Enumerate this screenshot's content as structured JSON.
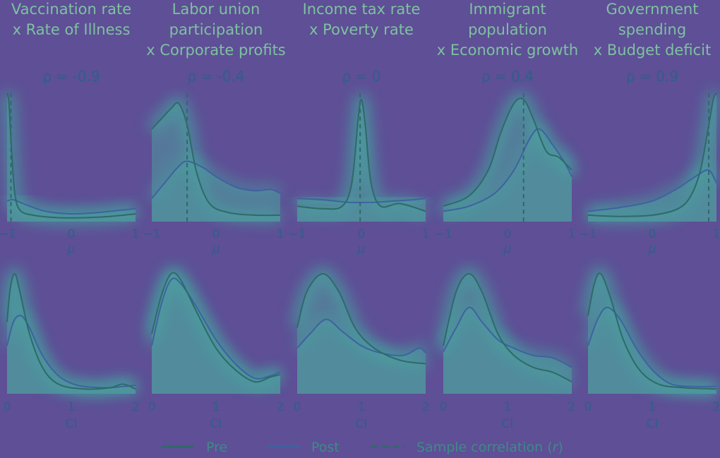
{
  "chart_data": {
    "type": "density",
    "legend": {
      "placement": "bottom",
      "entries": [
        {
          "label": "Pre",
          "style": "solid",
          "color": "#2f5f6e"
        },
        {
          "label": "Post",
          "style": "solid",
          "color": "#4a3f8f"
        },
        {
          "label": "Sample correlation (",
          "label_italic": "r",
          "label_end": ")",
          "style": "dashed",
          "color": "#2f5f6e"
        }
      ]
    },
    "colors": {
      "background": "#5e4f96",
      "fill": "#4f9a9e",
      "pre_line": "#2f6a68",
      "post_line": "#3f62a0",
      "glow": "#39c4a0",
      "text": "#2f5f88",
      "title": "#7ec1a0"
    },
    "mu_axis": {
      "label": "μ",
      "range": [
        -1,
        1
      ],
      "ticks": [
        "−1",
        "0",
        "1"
      ]
    },
    "ci_axis": {
      "label": "CI",
      "range": [
        0,
        2
      ],
      "ticks": [
        "0",
        "1",
        "2"
      ]
    },
    "rho_prefix": "ρ = ",
    "panels": [
      {
        "title": [
          "Vaccination rate",
          "x Rate of Illness"
        ],
        "rho": "-0.9",
        "sample_r": -0.94,
        "mu_pre": [
          [
            -1,
            1.0
          ],
          [
            -0.97,
            0.92
          ],
          [
            -0.93,
            0.55
          ],
          [
            -0.88,
            0.22
          ],
          [
            -0.8,
            0.09
          ],
          [
            -0.6,
            0.05
          ],
          [
            -0.2,
            0.03
          ],
          [
            0.2,
            0.03
          ],
          [
            0.6,
            0.04
          ],
          [
            1,
            0.06
          ]
        ],
        "mu_post": [
          [
            -1,
            0.16
          ],
          [
            -0.9,
            0.17
          ],
          [
            -0.7,
            0.13
          ],
          [
            -0.4,
            0.08
          ],
          [
            0,
            0.06
          ],
          [
            0.4,
            0.07
          ],
          [
            0.8,
            0.09
          ],
          [
            1,
            0.1
          ]
        ],
        "ci_pre": [
          [
            0,
            0.6
          ],
          [
            0.05,
            0.88
          ],
          [
            0.12,
            1.0
          ],
          [
            0.2,
            0.85
          ],
          [
            0.35,
            0.5
          ],
          [
            0.55,
            0.22
          ],
          [
            0.8,
            0.08
          ],
          [
            1.2,
            0.04
          ],
          [
            1.6,
            0.05
          ],
          [
            1.8,
            0.08
          ],
          [
            2,
            0.04
          ]
        ],
        "ci_post": [
          [
            0,
            0.4
          ],
          [
            0.1,
            0.6
          ],
          [
            0.22,
            0.65
          ],
          [
            0.35,
            0.55
          ],
          [
            0.55,
            0.32
          ],
          [
            0.8,
            0.15
          ],
          [
            1.1,
            0.07
          ],
          [
            1.5,
            0.05
          ],
          [
            1.8,
            0.06
          ],
          [
            2,
            0.07
          ]
        ]
      },
      {
        "title": [
          "Labor union",
          "participation",
          "x Corporate profits"
        ],
        "rho": "-0.4",
        "sample_r": -0.45,
        "mu_pre": [
          [
            -1,
            0.72
          ],
          [
            -0.85,
            0.8
          ],
          [
            -0.7,
            0.88
          ],
          [
            -0.58,
            0.92
          ],
          [
            -0.45,
            0.75
          ],
          [
            -0.3,
            0.38
          ],
          [
            -0.1,
            0.14
          ],
          [
            0.2,
            0.07
          ],
          [
            0.6,
            0.05
          ],
          [
            1,
            0.05
          ]
        ],
        "mu_post": [
          [
            -1,
            0.18
          ],
          [
            -0.8,
            0.3
          ],
          [
            -0.6,
            0.42
          ],
          [
            -0.45,
            0.47
          ],
          [
            -0.2,
            0.42
          ],
          [
            0,
            0.35
          ],
          [
            0.3,
            0.27
          ],
          [
            0.6,
            0.24
          ],
          [
            0.85,
            0.25
          ],
          [
            1,
            0.22
          ]
        ],
        "ci_pre": [
          [
            0,
            0.5
          ],
          [
            0.15,
            0.82
          ],
          [
            0.3,
            1.0
          ],
          [
            0.45,
            0.95
          ],
          [
            0.7,
            0.68
          ],
          [
            1.0,
            0.38
          ],
          [
            1.3,
            0.2
          ],
          [
            1.6,
            0.1
          ],
          [
            1.85,
            0.14
          ],
          [
            2,
            0.16
          ]
        ],
        "ci_post": [
          [
            0,
            0.4
          ],
          [
            0.15,
            0.75
          ],
          [
            0.3,
            0.95
          ],
          [
            0.45,
            0.92
          ],
          [
            0.7,
            0.72
          ],
          [
            1.0,
            0.45
          ],
          [
            1.3,
            0.25
          ],
          [
            1.6,
            0.13
          ],
          [
            1.85,
            0.15
          ],
          [
            2,
            0.18
          ]
        ]
      },
      {
        "title": [
          "Income tax rate",
          "x Poverty rate"
        ],
        "rho": "0",
        "sample_r": -0.02,
        "mu_pre": [
          [
            -1,
            0.12
          ],
          [
            -0.6,
            0.1
          ],
          [
            -0.3,
            0.12
          ],
          [
            -0.15,
            0.3
          ],
          [
            -0.05,
            0.8
          ],
          [
            0,
            0.95
          ],
          [
            0.06,
            0.75
          ],
          [
            0.15,
            0.3
          ],
          [
            0.3,
            0.12
          ],
          [
            0.6,
            0.14
          ],
          [
            1,
            0.08
          ]
        ],
        "mu_post": [
          [
            -1,
            0.18
          ],
          [
            -0.6,
            0.17
          ],
          [
            -0.2,
            0.15
          ],
          [
            0.2,
            0.15
          ],
          [
            0.5,
            0.16
          ],
          [
            0.8,
            0.17
          ],
          [
            1,
            0.18
          ]
        ],
        "ci_pre": [
          [
            0,
            0.55
          ],
          [
            0.15,
            0.85
          ],
          [
            0.4,
            1.0
          ],
          [
            0.65,
            0.85
          ],
          [
            0.9,
            0.55
          ],
          [
            1.2,
            0.38
          ],
          [
            1.6,
            0.28
          ],
          [
            2,
            0.25
          ]
        ],
        "ci_post": [
          [
            0,
            0.38
          ],
          [
            0.2,
            0.5
          ],
          [
            0.45,
            0.62
          ],
          [
            0.7,
            0.52
          ],
          [
            1.0,
            0.4
          ],
          [
            1.3,
            0.34
          ],
          [
            1.65,
            0.32
          ],
          [
            1.9,
            0.38
          ],
          [
            2,
            0.34
          ]
        ]
      },
      {
        "title": [
          "Immigrant",
          "population",
          "x Economic growth"
        ],
        "rho": "0.4",
        "sample_r": 0.25,
        "mu_pre": [
          [
            -1,
            0.12
          ],
          [
            -0.6,
            0.2
          ],
          [
            -0.3,
            0.4
          ],
          [
            -0.1,
            0.7
          ],
          [
            0.1,
            0.92
          ],
          [
            0.25,
            0.95
          ],
          [
            0.4,
            0.8
          ],
          [
            0.6,
            0.55
          ],
          [
            0.8,
            0.5
          ],
          [
            1,
            0.4
          ]
        ],
        "mu_post": [
          [
            -1,
            0.08
          ],
          [
            -0.6,
            0.12
          ],
          [
            -0.2,
            0.22
          ],
          [
            0.1,
            0.4
          ],
          [
            0.35,
            0.65
          ],
          [
            0.5,
            0.72
          ],
          [
            0.7,
            0.6
          ],
          [
            0.9,
            0.45
          ],
          [
            1,
            0.35
          ]
        ],
        "ci_pre": [
          [
            0,
            0.4
          ],
          [
            0.2,
            0.85
          ],
          [
            0.4,
            1.0
          ],
          [
            0.6,
            0.85
          ],
          [
            0.85,
            0.5
          ],
          [
            1.1,
            0.32
          ],
          [
            1.4,
            0.22
          ],
          [
            1.7,
            0.18
          ],
          [
            2,
            0.1
          ]
        ],
        "ci_post": [
          [
            0,
            0.35
          ],
          [
            0.2,
            0.55
          ],
          [
            0.4,
            0.72
          ],
          [
            0.6,
            0.6
          ],
          [
            0.85,
            0.45
          ],
          [
            1.1,
            0.38
          ],
          [
            1.4,
            0.32
          ],
          [
            1.7,
            0.3
          ],
          [
            2,
            0.22
          ]
        ]
      },
      {
        "title": [
          "Government",
          "spending",
          "x Budget deficit"
        ],
        "rho": "0.9",
        "sample_r": 0.88,
        "mu_pre": [
          [
            -1,
            0.05
          ],
          [
            -0.5,
            0.04
          ],
          [
            0,
            0.05
          ],
          [
            0.4,
            0.1
          ],
          [
            0.6,
            0.2
          ],
          [
            0.75,
            0.4
          ],
          [
            0.88,
            0.75
          ],
          [
            0.95,
            0.95
          ],
          [
            1,
            1.0
          ]
        ],
        "mu_post": [
          [
            -1,
            0.08
          ],
          [
            -0.5,
            0.11
          ],
          [
            0,
            0.16
          ],
          [
            0.4,
            0.26
          ],
          [
            0.7,
            0.36
          ],
          [
            0.88,
            0.4
          ],
          [
            1,
            0.3
          ]
        ],
        "ci_pre": [
          [
            0,
            0.65
          ],
          [
            0.1,
            0.92
          ],
          [
            0.2,
            1.0
          ],
          [
            0.35,
            0.8
          ],
          [
            0.55,
            0.45
          ],
          [
            0.8,
            0.2
          ],
          [
            1.1,
            0.08
          ],
          [
            1.5,
            0.05
          ],
          [
            2,
            0.04
          ]
        ],
        "ci_post": [
          [
            0,
            0.4
          ],
          [
            0.15,
            0.62
          ],
          [
            0.3,
            0.72
          ],
          [
            0.5,
            0.62
          ],
          [
            0.75,
            0.38
          ],
          [
            1.0,
            0.2
          ],
          [
            1.3,
            0.08
          ],
          [
            1.7,
            0.06
          ],
          [
            2,
            0.06
          ]
        ]
      }
    ]
  }
}
